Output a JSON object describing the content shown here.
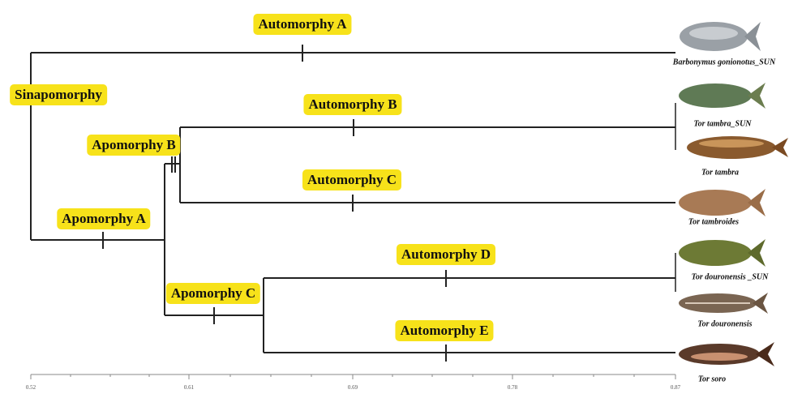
{
  "nodes": [
    "Automorphy A",
    "Sinapomorphy",
    "Apomorphy B",
    "Automorphy B",
    "Automorphy C",
    "Apomorphy A",
    "Apomorphy C",
    "Automorphy D",
    "Automorphy E"
  ],
  "species": [
    "Barbonymus gonionotus_SUN",
    "Tor tambra_SUN",
    "Tor tambra",
    "Tor tambroides",
    "Tor douronensis _SUN",
    "Tor douronensis",
    "Tor soro"
  ],
  "axis": {
    "ticks": [
      "0.52",
      "0.61",
      "0.69",
      "0.78",
      "0.87"
    ]
  }
}
